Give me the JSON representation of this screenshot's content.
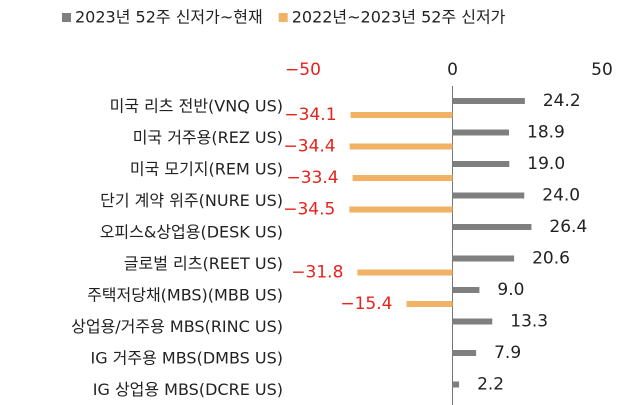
{
  "chart_data": {
    "type": "barh",
    "categories": [
      "미국 리츠 전반(VNQ US)",
      "미국 거주용(REZ US)",
      "미국 모기지(REM US)",
      "단기 계약 위주(NURE US)",
      "오피스&상업용(DESK US)",
      "글로벌 리츠(REET US)",
      "주택저당채(MBS)(MBB US)",
      "상업용/거주용 MBS(RINC US)",
      "IG 거주용 MBS(DMBS US)",
      "IG 상업용 MBS(DCRE US)"
    ],
    "series": [
      {
        "name": "2023년 52주 신저가~현재",
        "color": "#7f7f7f",
        "label_color": "#222222",
        "values": [
          24.2,
          18.9,
          19.0,
          24.0,
          26.4,
          20.6,
          9.0,
          13.3,
          7.9,
          2.2
        ],
        "value_labels": [
          "24.2",
          "18.9",
          "19.0",
          "24.0",
          "26.4",
          "20.6",
          "9.0",
          "13.3",
          "7.9",
          "2.2"
        ]
      },
      {
        "name": "2022년~2023년 52주 신저가",
        "color": "#f2b266",
        "label_color": "#e8221b",
        "values": [
          -34.1,
          -34.4,
          -33.4,
          -34.5,
          null,
          -31.8,
          -15.4,
          null,
          null,
          null
        ],
        "value_labels": [
          "−34.1",
          "−34.4",
          "−33.4",
          "−34.5",
          null,
          "−31.8",
          "−15.4",
          null,
          null,
          null
        ]
      }
    ],
    "xlim": [
      -50,
      50
    ],
    "xticks": [
      {
        "value": -50,
        "label": "−50"
      },
      0,
      50
    ],
    "legend": "top"
  }
}
